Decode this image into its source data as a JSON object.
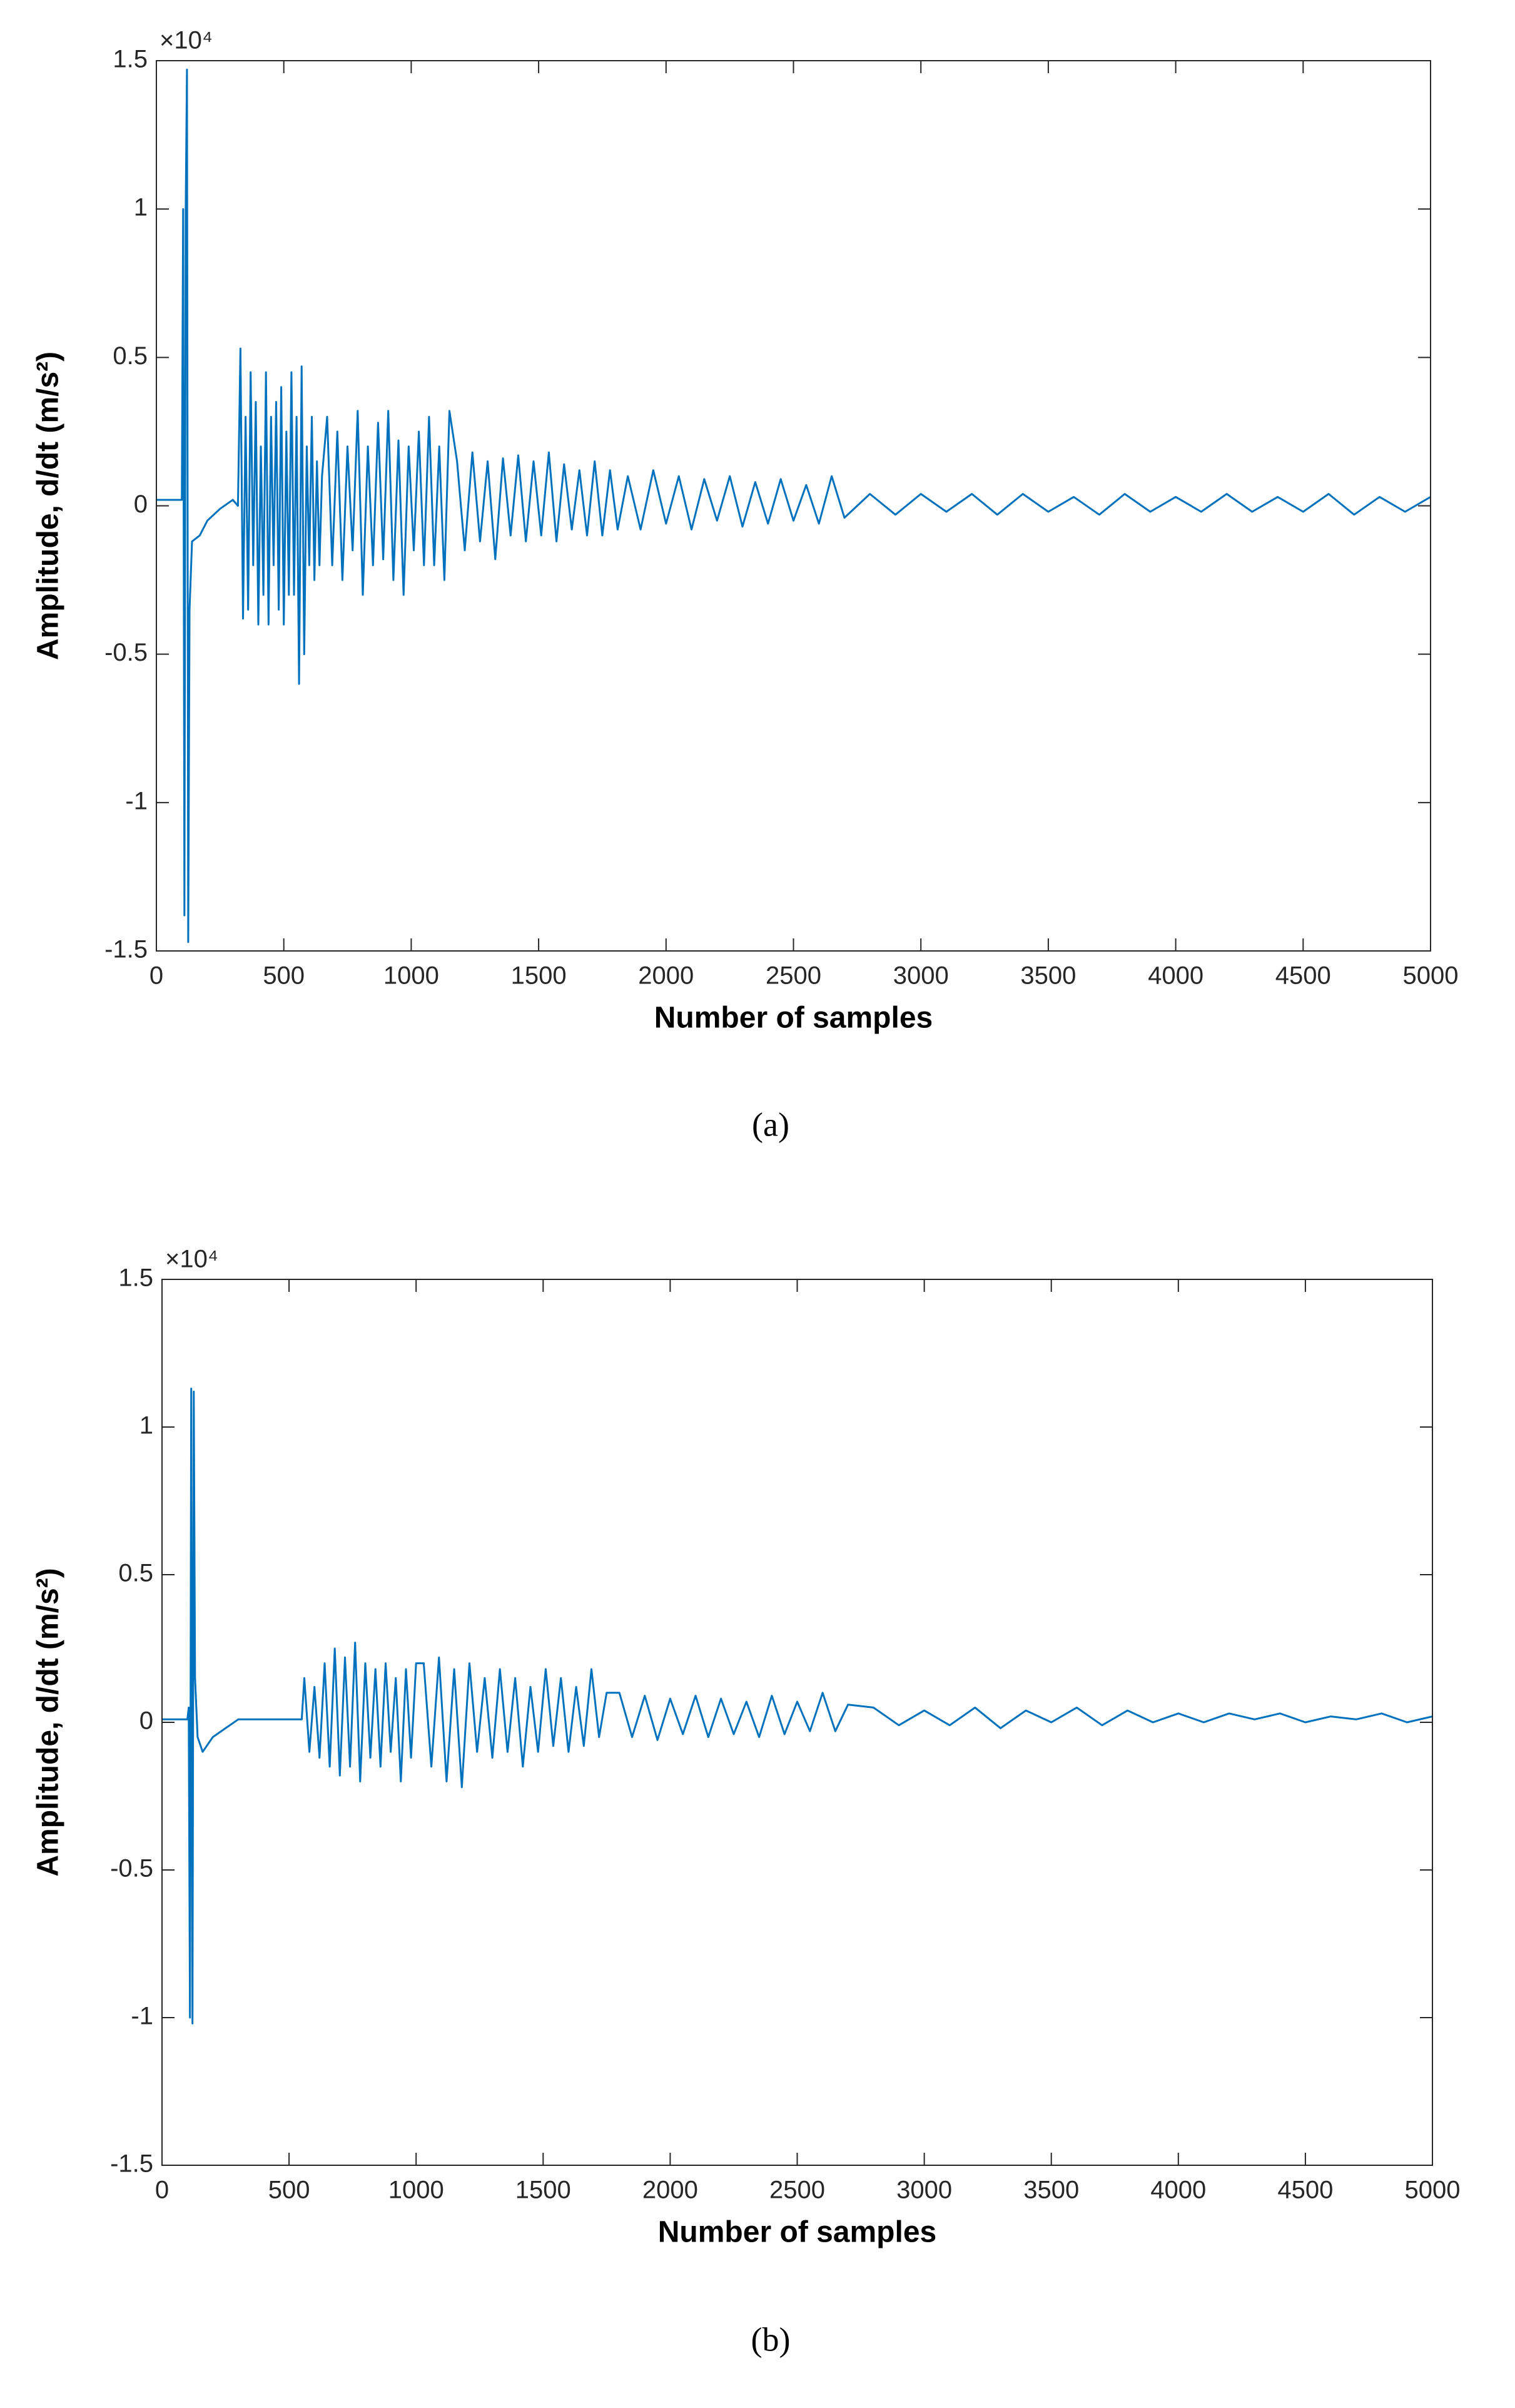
{
  "chart_data": [
    {
      "type": "line",
      "caption": "(a)",
      "xlabel": "Number of samples",
      "ylabel": "Amplitude, d/dt (m/s²)",
      "y_multiplier": "×10⁴",
      "color": "#0072bd",
      "xlim": [
        0,
        5000
      ],
      "xticks": [
        0,
        500,
        1000,
        1500,
        2000,
        2500,
        3000,
        3500,
        4000,
        4500,
        5000
      ],
      "ylim": [
        -1.5,
        1.5
      ],
      "yticks": [
        -1.5,
        -1,
        -0.5,
        0,
        0.5,
        1,
        1.5
      ],
      "x": [
        0,
        50,
        100,
        105,
        110,
        115,
        120,
        125,
        130,
        140,
        170,
        200,
        250,
        300,
        320,
        330,
        340,
        350,
        360,
        370,
        380,
        390,
        400,
        410,
        420,
        430,
        440,
        450,
        460,
        470,
        480,
        490,
        500,
        510,
        520,
        530,
        540,
        550,
        560,
        570,
        580,
        590,
        600,
        610,
        620,
        630,
        640,
        650,
        670,
        690,
        710,
        730,
        750,
        770,
        790,
        810,
        830,
        850,
        870,
        890,
        910,
        930,
        950,
        970,
        990,
        1010,
        1030,
        1050,
        1070,
        1090,
        1110,
        1130,
        1150,
        1180,
        1210,
        1240,
        1270,
        1300,
        1330,
        1360,
        1390,
        1420,
        1450,
        1480,
        1510,
        1540,
        1570,
        1600,
        1630,
        1660,
        1690,
        1720,
        1750,
        1780,
        1810,
        1850,
        1900,
        1950,
        2000,
        2050,
        2100,
        2150,
        2200,
        2250,
        2300,
        2350,
        2400,
        2450,
        2500,
        2550,
        2600,
        2650,
        2700,
        2800,
        2900,
        3000,
        3100,
        3200,
        3300,
        3400,
        3500,
        3600,
        3700,
        3800,
        3900,
        4000,
        4100,
        4200,
        4300,
        4400,
        4500,
        4600,
        4700,
        4800,
        4900,
        5000
      ],
      "values": [
        0.02,
        0.02,
        0.02,
        1.0,
        -1.38,
        1.0,
        1.47,
        -1.47,
        -0.35,
        -0.12,
        -0.1,
        -0.05,
        -0.01,
        0.02,
        0.0,
        0.53,
        -0.38,
        0.3,
        -0.35,
        0.45,
        -0.2,
        0.35,
        -0.4,
        0.2,
        -0.3,
        0.45,
        -0.4,
        0.3,
        -0.2,
        0.35,
        -0.35,
        0.4,
        -0.4,
        0.25,
        -0.3,
        0.45,
        -0.3,
        0.3,
        -0.6,
        0.47,
        -0.5,
        0.2,
        -0.2,
        0.3,
        -0.25,
        0.15,
        -0.2,
        0.1,
        0.3,
        -0.2,
        0.25,
        -0.25,
        0.2,
        -0.15,
        0.32,
        -0.3,
        0.2,
        -0.2,
        0.28,
        -0.18,
        0.32,
        -0.25,
        0.22,
        -0.3,
        0.2,
        -0.15,
        0.25,
        -0.2,
        0.3,
        -0.2,
        0.2,
        -0.25,
        0.32,
        0.15,
        -0.15,
        0.18,
        -0.12,
        0.15,
        -0.18,
        0.16,
        -0.1,
        0.17,
        -0.12,
        0.15,
        -0.1,
        0.18,
        -0.12,
        0.14,
        -0.08,
        0.12,
        -0.1,
        0.15,
        -0.1,
        0.12,
        -0.08,
        0.1,
        -0.08,
        0.12,
        -0.06,
        0.1,
        -0.08,
        0.09,
        -0.05,
        0.1,
        -0.07,
        0.08,
        -0.06,
        0.09,
        -0.05,
        0.07,
        -0.06,
        0.1,
        -0.04,
        0.04,
        -0.03,
        0.04,
        -0.02,
        0.04,
        -0.03,
        0.04,
        -0.02,
        0.03,
        -0.03,
        0.04,
        -0.02,
        0.03,
        -0.02,
        0.04,
        -0.02,
        0.03,
        -0.02,
        0.04,
        -0.03,
        0.03,
        -0.02,
        0.03
      ]
    },
    {
      "type": "line",
      "caption": "(b)",
      "xlabel": "Number of samples",
      "ylabel": "Amplitude, d/dt (m/s²)",
      "y_multiplier": "×10⁴",
      "color": "#0072bd",
      "xlim": [
        0,
        5000
      ],
      "xticks": [
        0,
        500,
        1000,
        1500,
        2000,
        2500,
        3000,
        3500,
        4000,
        4500,
        5000
      ],
      "ylim": [
        -1.5,
        1.5
      ],
      "yticks": [
        -1.5,
        -1,
        -0.5,
        0,
        0.5,
        1,
        1.5
      ],
      "x": [
        0,
        50,
        100,
        105,
        110,
        115,
        120,
        125,
        130,
        140,
        160,
        200,
        250,
        300,
        550,
        560,
        580,
        600,
        620,
        640,
        660,
        680,
        700,
        720,
        740,
        760,
        780,
        800,
        820,
        840,
        860,
        880,
        900,
        920,
        940,
        960,
        980,
        1000,
        1030,
        1060,
        1090,
        1120,
        1150,
        1180,
        1210,
        1240,
        1270,
        1300,
        1330,
        1360,
        1390,
        1420,
        1450,
        1480,
        1510,
        1540,
        1570,
        1600,
        1630,
        1660,
        1690,
        1720,
        1750,
        1800,
        1850,
        1900,
        1950,
        2000,
        2050,
        2100,
        2150,
        2200,
        2250,
        2300,
        2350,
        2400,
        2450,
        2500,
        2550,
        2600,
        2650,
        2700,
        2800,
        2900,
        3000,
        3100,
        3200,
        3300,
        3400,
        3500,
        3600,
        3700,
        3800,
        3900,
        4000,
        4100,
        4200,
        4300,
        4400,
        4500,
        4600,
        4700,
        4800,
        4900,
        5000
      ],
      "values": [
        0.01,
        0.01,
        0.01,
        0.05,
        -1.0,
        1.13,
        -1.02,
        1.12,
        0.15,
        -0.05,
        -0.1,
        -0.05,
        -0.02,
        0.01,
        0.01,
        0.15,
        -0.1,
        0.12,
        -0.12,
        0.2,
        -0.15,
        0.25,
        -0.18,
        0.22,
        -0.15,
        0.27,
        -0.2,
        0.2,
        -0.12,
        0.18,
        -0.15,
        0.2,
        -0.1,
        0.15,
        -0.2,
        0.18,
        -0.12,
        0.2,
        0.2,
        -0.15,
        0.22,
        -0.2,
        0.18,
        -0.22,
        0.2,
        -0.1,
        0.15,
        -0.12,
        0.18,
        -0.1,
        0.15,
        -0.15,
        0.12,
        -0.1,
        0.18,
        -0.08,
        0.15,
        -0.1,
        0.12,
        -0.08,
        0.18,
        -0.05,
        0.1,
        0.1,
        -0.05,
        0.09,
        -0.06,
        0.08,
        -0.04,
        0.09,
        -0.05,
        0.08,
        -0.04,
        0.07,
        -0.05,
        0.09,
        -0.04,
        0.07,
        -0.03,
        0.1,
        -0.03,
        0.06,
        0.05,
        -0.01,
        0.04,
        -0.01,
        0.05,
        -0.02,
        0.04,
        0.0,
        0.05,
        -0.01,
        0.04,
        0.0,
        0.03,
        0.0,
        0.03,
        0.01,
        0.03,
        0.0,
        0.02,
        0.01,
        0.03,
        0.0,
        0.02
      ]
    }
  ]
}
